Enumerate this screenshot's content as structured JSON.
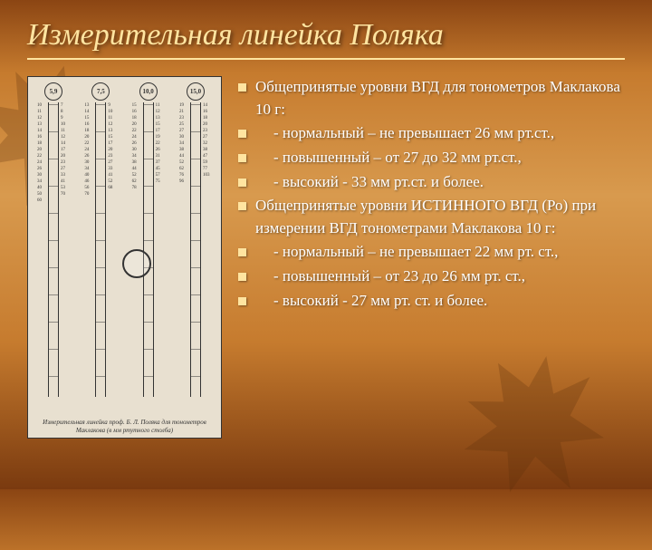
{
  "title": "Измерительная линейка Поляка",
  "ruler": {
    "heads": [
      "5,9",
      "7,5",
      "10,0",
      "15,0"
    ],
    "caption": "Измерительная линейка проф. Б. Л. Поляка для тонометров Маклакова (в мм ртутного столба)"
  },
  "lines": [
    {
      "text": "Общепринятые уровни ВГД для тонометров Маклакова 10 г:",
      "indent": 0
    },
    {
      "text": "-   нормальный – не превышает 26 мм рт.ст.,",
      "indent": 1
    },
    {
      "text": "-   повышенный – от 27 до 32 мм рт.ст.,",
      "indent": 1
    },
    {
      "text": "-   высокий  -  33 мм рт.ст. и более.",
      "indent": 1
    },
    {
      "text": "Общепринятые уровни ИСТИННОГО ВГД (Ро) при измерении ВГД тонометрами Маклакова 10 г:",
      "indent": 0
    },
    {
      "text": "- нормальный – не превышает 22 мм рт. ст.,",
      "indent": 1
    },
    {
      "text": "- повышенный – от 23 до 26 мм рт. ст.,",
      "indent": 1
    },
    {
      "text": "- высокий  -  27 мм рт. ст. и более.",
      "indent": 1
    }
  ],
  "colors": {
    "title": "#ffe4a0",
    "text": "#ffffff",
    "bullet": "#ffe4a0"
  }
}
